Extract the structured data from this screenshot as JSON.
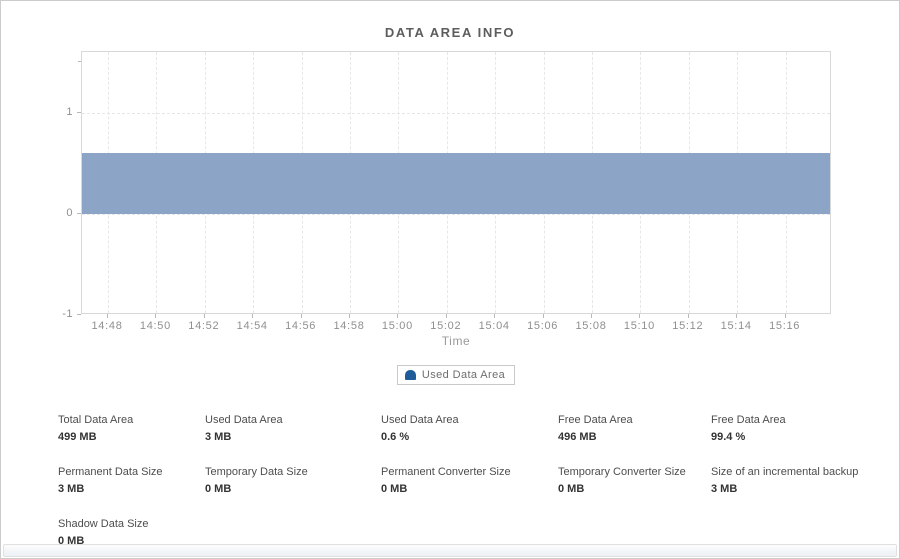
{
  "window": {
    "title": "DATA AREA INFO"
  },
  "colors": {
    "series_fill": "#8CA5C6",
    "legend_marker": "#1F5C99",
    "grid": "#e7e7e7",
    "plot_border": "#d8d8d8"
  },
  "chart_data": {
    "type": "area",
    "title": "DATA AREA INFO",
    "xlabel": "Time",
    "ylabel": "",
    "x": [
      "14:48",
      "14:50",
      "14:52",
      "14:54",
      "14:56",
      "14:58",
      "15:00",
      "15:02",
      "15:04",
      "15:06",
      "15:08",
      "15:10",
      "15:12",
      "15:14",
      "15:16"
    ],
    "y_ticks": [
      -1,
      0,
      1
    ],
    "y_minor_ticks": [
      1.5
    ],
    "ylim": [
      -1,
      1.6
    ],
    "grid": true,
    "legend_position": "bottom",
    "series": [
      {
        "name": "Used Data Area",
        "fill_color": "#8CA5C6",
        "marker_color": "#1F5C99",
        "constant_value": 0.6,
        "values": [
          0.6,
          0.6,
          0.6,
          0.6,
          0.6,
          0.6,
          0.6,
          0.6,
          0.6,
          0.6,
          0.6,
          0.6,
          0.6,
          0.6,
          0.6
        ]
      }
    ]
  },
  "stats": {
    "rows": [
      [
        {
          "label": "Total Data Area",
          "value": "499 MB"
        },
        {
          "label": "Used Data Area",
          "value": "3 MB"
        },
        {
          "label": "Used Data Area",
          "value": "0.6 %"
        },
        {
          "label": "Free Data Area",
          "value": "496 MB"
        },
        {
          "label": "Free Data Area",
          "value": "99.4 %"
        }
      ],
      [
        {
          "label": "Permanent Data Size",
          "value": "3 MB"
        },
        {
          "label": "Temporary Data Size",
          "value": "0 MB"
        },
        {
          "label": "Permanent Converter Size",
          "value": "0 MB"
        },
        {
          "label": "Temporary Converter Size",
          "value": "0 MB"
        },
        {
          "label": "Size of an incremental backup",
          "value": "3 MB"
        }
      ],
      [
        {
          "label": "Shadow Data Size",
          "value": "0 MB"
        }
      ]
    ]
  }
}
